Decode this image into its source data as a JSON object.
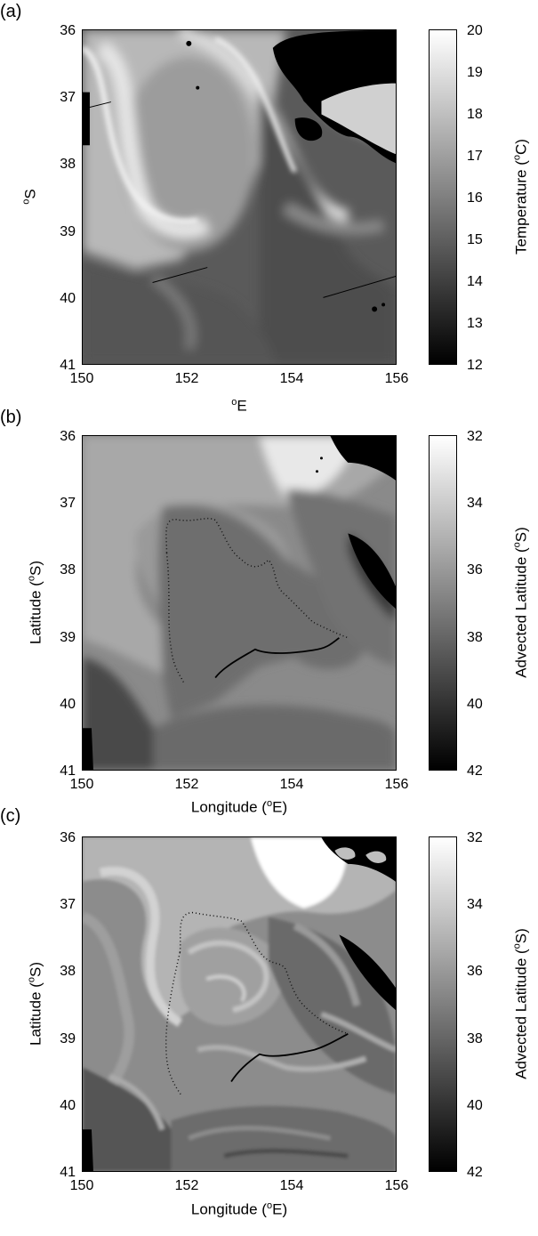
{
  "panels": [
    {
      "label": "(a)",
      "x_ticks": [
        "150",
        "152",
        "154",
        "156"
      ],
      "y_ticks": [
        "36",
        "37",
        "38",
        "39",
        "40",
        "41"
      ],
      "x_label": {
        "pre": "",
        "sup": "o",
        "post": "E"
      },
      "y_label": {
        "pre": "",
        "sup": "o",
        "post": "S"
      },
      "colorbar_ticks": [
        "20",
        "19",
        "18",
        "17",
        "16",
        "15",
        "14",
        "13",
        "12"
      ],
      "colorbar_label": {
        "pre": "Temperature (",
        "sup": "o",
        "post": "C)"
      },
      "colormap": "gray"
    },
    {
      "label": "(b)",
      "x_ticks": [
        "150",
        "152",
        "154",
        "156"
      ],
      "y_ticks": [
        "36",
        "37",
        "38",
        "39",
        "40",
        "41"
      ],
      "x_label": {
        "pre": "Longitude (",
        "sup": "o",
        "post": "E)"
      },
      "y_label": {
        "pre": "Latitude (",
        "sup": "o",
        "post": "S)"
      },
      "colorbar_ticks": [
        "32",
        "34",
        "36",
        "38",
        "40",
        "42"
      ],
      "colorbar_label": {
        "pre": "Advected Latitude (",
        "sup": "o",
        "post": "S)"
      },
      "colormap": "gray"
    },
    {
      "label": "(c)",
      "x_ticks": [
        "150",
        "152",
        "154",
        "156"
      ],
      "y_ticks": [
        "36",
        "37",
        "38",
        "39",
        "40",
        "41"
      ],
      "x_label": {
        "pre": "Longitude (",
        "sup": "o",
        "post": "E)"
      },
      "y_label": {
        "pre": "Latitude (",
        "sup": "o",
        "post": "S)"
      },
      "colorbar_ticks": [
        "32",
        "34",
        "36",
        "38",
        "40",
        "42"
      ],
      "colorbar_label": {
        "pre": "Advected Latitude (",
        "sup": "o",
        "post": "S)"
      },
      "colormap": "gray"
    }
  ],
  "colors": {
    "background": "#ffffff",
    "axis": "#000000"
  }
}
